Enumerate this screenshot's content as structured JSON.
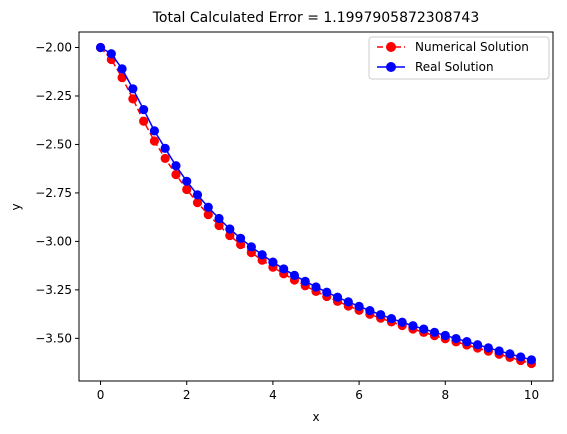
{
  "chart_data": {
    "type": "line",
    "title": "Total Calculated Error = 1.1997905872308743",
    "xlabel": "x",
    "ylabel": "y",
    "xlim": [
      -0.5,
      10.5
    ],
    "ylim": [
      -3.72,
      -1.92
    ],
    "xticks": [
      0,
      2,
      4,
      6,
      8,
      10
    ],
    "xtick_labels": [
      "0",
      "2",
      "4",
      "6",
      "8",
      "10"
    ],
    "yticks": [
      -2.0,
      -2.25,
      -2.5,
      -2.75,
      -3.0,
      -3.25,
      -3.5
    ],
    "ytick_labels": [
      "−2.00",
      "−2.25",
      "−2.50",
      "−2.75",
      "−3.00",
      "−3.25",
      "−3.50"
    ],
    "grid": false,
    "legend_position": "top-right",
    "x": [
      0,
      0.25,
      0.5,
      0.75,
      1.0,
      1.25,
      1.5,
      1.75,
      2.0,
      2.25,
      2.5,
      2.75,
      3.0,
      3.25,
      3.5,
      3.75,
      4.0,
      4.25,
      4.5,
      4.75,
      5.0,
      5.25,
      5.5,
      5.75,
      6.0,
      6.25,
      6.5,
      6.75,
      7.0,
      7.25,
      7.5,
      7.75,
      8.0,
      8.25,
      8.5,
      8.75,
      9.0,
      9.25,
      9.5,
      9.75,
      10.0
    ],
    "series": [
      {
        "name": "Numerical Solution",
        "color": "#ff0000",
        "linestyle": "dashed",
        "marker": "circle",
        "values": [
          -2.0,
          -2.062,
          -2.155,
          -2.265,
          -2.38,
          -2.482,
          -2.572,
          -2.655,
          -2.732,
          -2.8,
          -2.862,
          -2.918,
          -2.97,
          -3.016,
          -3.058,
          -3.097,
          -3.133,
          -3.167,
          -3.199,
          -3.229,
          -3.258,
          -3.284,
          -3.309,
          -3.333,
          -3.355,
          -3.376,
          -3.396,
          -3.415,
          -3.434,
          -3.452,
          -3.469,
          -3.486,
          -3.502,
          -3.518,
          -3.534,
          -3.55,
          -3.566,
          -3.582,
          -3.598,
          -3.614,
          -3.63
        ]
      },
      {
        "name": "Real Solution",
        "color": "#0000ff",
        "linestyle": "solid",
        "marker": "circle",
        "values": [
          -2.0,
          -2.032,
          -2.11,
          -2.213,
          -2.32,
          -2.43,
          -2.52,
          -2.61,
          -2.69,
          -2.76,
          -2.824,
          -2.882,
          -2.936,
          -2.984,
          -3.028,
          -3.069,
          -3.107,
          -3.142,
          -3.175,
          -3.206,
          -3.235,
          -3.262,
          -3.288,
          -3.312,
          -3.335,
          -3.357,
          -3.378,
          -3.398,
          -3.417,
          -3.435,
          -3.452,
          -3.469,
          -3.485,
          -3.501,
          -3.517,
          -3.533,
          -3.549,
          -3.565,
          -3.58,
          -3.596,
          -3.611
        ]
      }
    ]
  }
}
